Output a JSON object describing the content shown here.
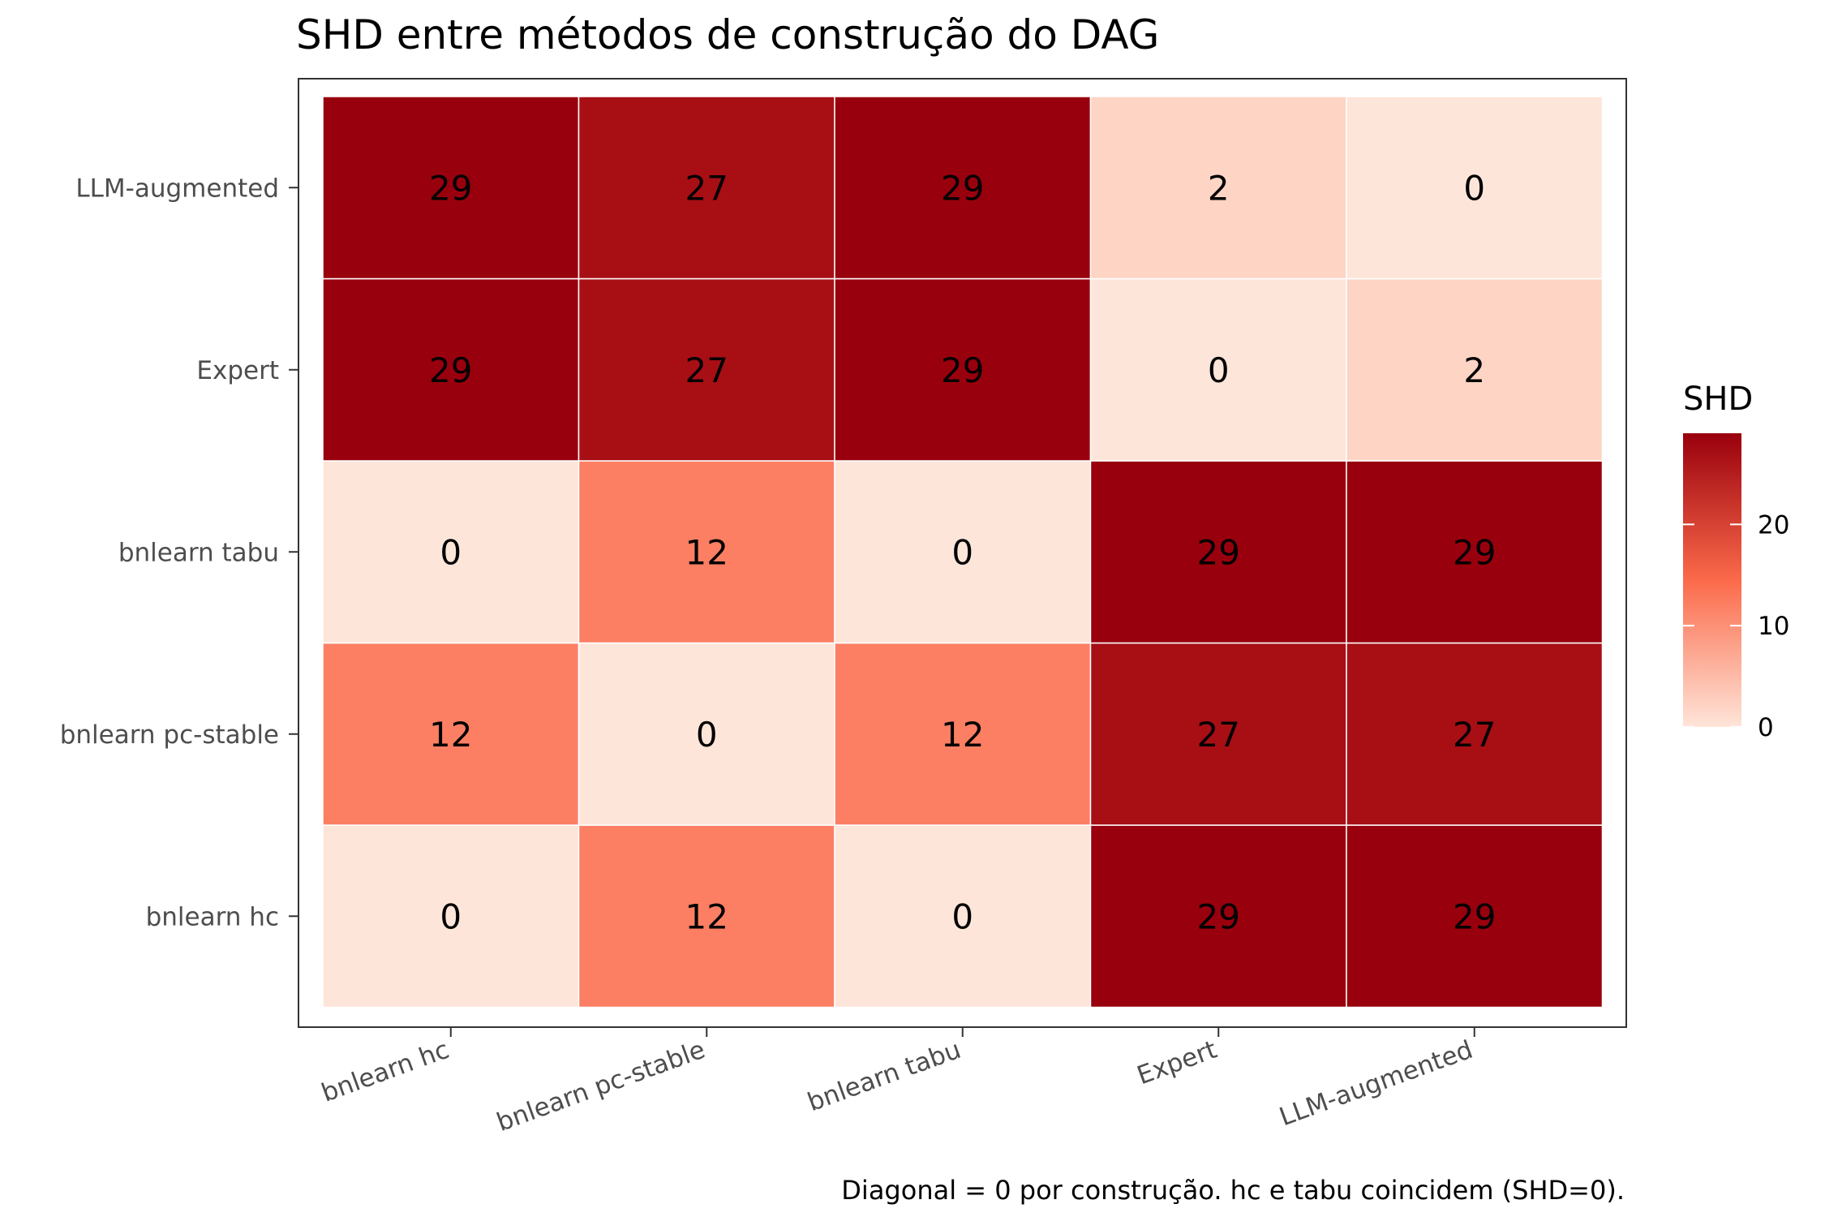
{
  "chart_data": {
    "type": "heatmap",
    "title": "SHD entre métodos de construção do DAG",
    "caption": "Diagonal = 0 por construção. hc e tabu coincidem (SHD=0).",
    "x_categories": [
      "bnlearn hc",
      "bnlearn pc-stable",
      "bnlearn tabu",
      "Expert",
      "LLM-augmented"
    ],
    "y_categories": [
      "bnlearn hc",
      "bnlearn pc-stable",
      "bnlearn tabu",
      "Expert",
      "LLM-augmented"
    ],
    "matrix": [
      [
        0,
        12,
        0,
        29,
        29
      ],
      [
        12,
        0,
        12,
        27,
        27
      ],
      [
        0,
        12,
        0,
        29,
        29
      ],
      [
        29,
        27,
        29,
        0,
        2
      ],
      [
        29,
        27,
        29,
        2,
        0
      ]
    ],
    "legend": {
      "title": "SHD",
      "ticks": [
        0,
        10,
        20
      ],
      "range": [
        0,
        29
      ],
      "low_color": "#fee5d9",
      "mid_color": "#fb6a4a",
      "high_color": "#99000d",
      "placement": "right"
    },
    "grid": false
  }
}
